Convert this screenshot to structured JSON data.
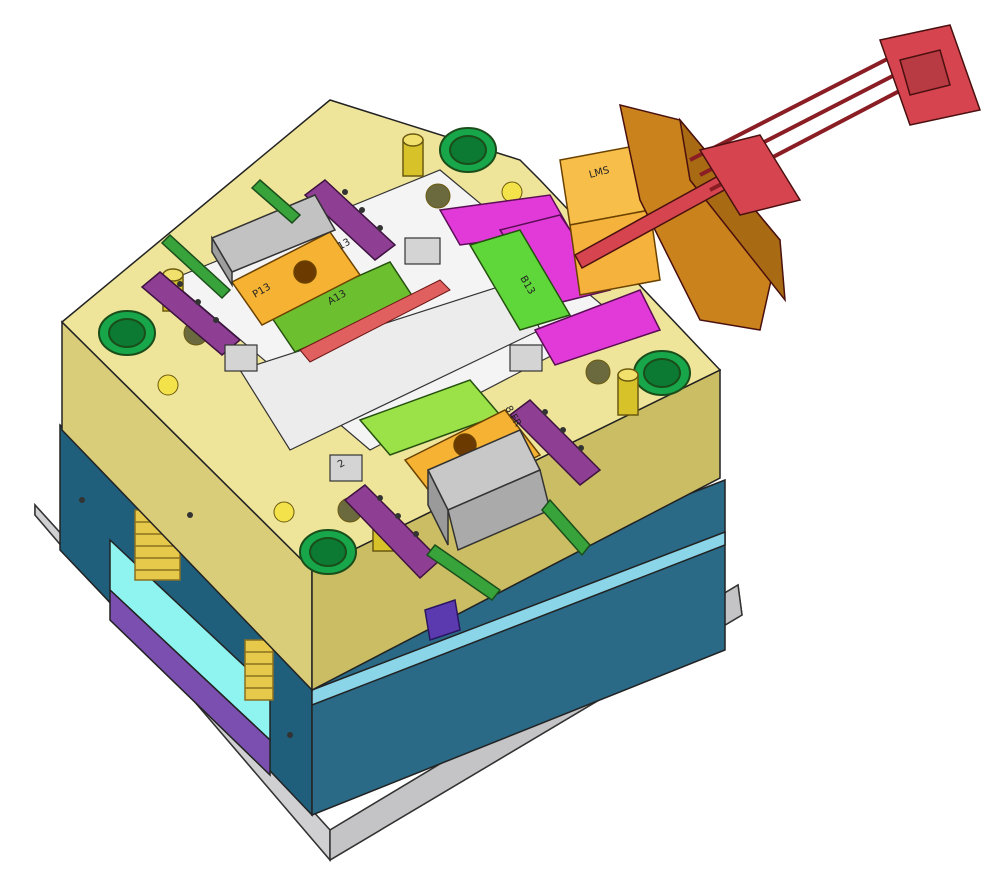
{
  "scene": {
    "subject": "injection mold assembly 3D render",
    "colors": {
      "background": "#ffffff",
      "base_plate": "#e9e9ea",
      "mold_body_blue": "#2a6a86",
      "mold_top_yellow": "#efe59a",
      "mold_side_yellow": "#d9cd7a",
      "purple_blocks": "#8e3f94",
      "magenta_blocks": "#e23ad8",
      "orange_blocks": "#f6b233",
      "green_slides": "#6cc02f",
      "grey_blocks": "#b9b9b9",
      "cylinder_red": "#d6454f",
      "cylinder_bracket": "#c9821c",
      "cyan_plate": "#8ff3f0",
      "spring": "#e6c84a",
      "pipe_green": "#37a33a",
      "bushing_green": "#18a64a"
    }
  },
  "labels": {
    "slide_label_1": "P13",
    "slide_label_2": "A13",
    "slide_label_3": "B13",
    "slide_label_4": "13",
    "corner_label": "2",
    "bracket_label": "LMS",
    "side_label_1": "8 FR"
  }
}
